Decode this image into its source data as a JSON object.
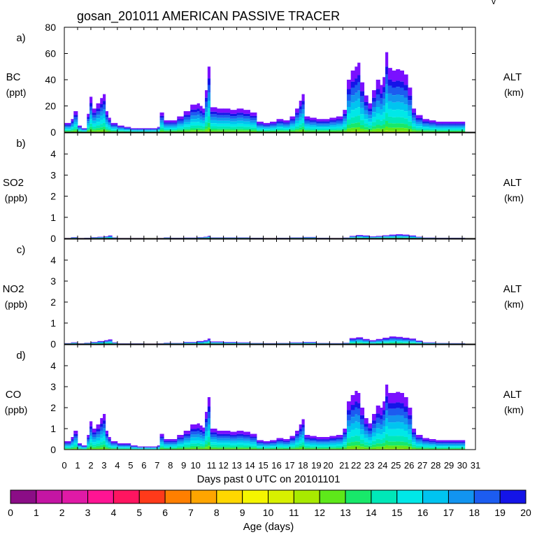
{
  "chart_data": {
    "type": "area",
    "title": "gosan_201011 AMERICAN PASSIVE TRACER",
    "corner_mark": "v",
    "xlabel": "Days past 0 UTC on 20101101",
    "x_ticks": [
      "0",
      "1",
      "2",
      "3",
      "4",
      "5",
      "6",
      "7",
      "8",
      "9",
      "10",
      "11",
      "12",
      "13",
      "14",
      "15",
      "16",
      "17",
      "18",
      "19",
      "20",
      "21",
      "22",
      "23",
      "24",
      "25",
      "26",
      "27",
      "28",
      "29",
      "30",
      "31"
    ],
    "xlim": [
      0,
      31
    ],
    "panels": [
      {
        "letter": "a)",
        "species": "BC",
        "unit": "(ppt)",
        "right_label": "ALT",
        "right_unit": "(km)",
        "ylim": [
          0,
          80
        ],
        "yticks": [
          "0",
          "20",
          "40",
          "60",
          "80"
        ],
        "ytick_values": [
          0,
          20,
          40,
          60,
          80
        ],
        "day": [
          0,
          0.5,
          0.7,
          1.0,
          1.3,
          1.7,
          1.9,
          2.1,
          2.4,
          2.7,
          2.9,
          3.1,
          3.3,
          3.5,
          4,
          4.5,
          5,
          5.5,
          6,
          6.5,
          7,
          7.2,
          7.5,
          8,
          8.5,
          9,
          9.5,
          10,
          10.2,
          10.4,
          10.6,
          10.8,
          11,
          11.5,
          12,
          12.5,
          13,
          13.5,
          14,
          14.5,
          15,
          15.5,
          16,
          16.5,
          17,
          17.4,
          17.7,
          17.9,
          18.1,
          18.5,
          19,
          19.5,
          20,
          20.5,
          21,
          21.3,
          21.6,
          21.9,
          22.1,
          22.3,
          22.6,
          22.9,
          23.2,
          23.5,
          23.8,
          24.0,
          24.2,
          24.4,
          24.7,
          25.0,
          25.3,
          25.6,
          25.9,
          26.2,
          26.5,
          27,
          27.5,
          28,
          28.5,
          29,
          29.5,
          30
        ],
        "total": [
          7,
          10,
          16,
          5,
          3,
          14,
          27,
          18,
          22,
          26,
          29,
          16,
          11,
          7,
          5,
          4,
          3,
          3,
          3,
          3,
          4,
          15,
          9,
          9,
          12,
          16,
          21,
          22,
          20,
          18,
          32,
          50,
          19,
          18,
          18,
          17,
          18,
          17,
          15,
          8,
          7,
          8,
          10,
          9,
          12,
          18,
          24,
          29,
          12,
          11,
          10,
          10,
          11,
          12,
          17,
          40,
          47,
          50,
          53,
          38,
          28,
          22,
          32,
          40,
          36,
          42,
          61,
          49,
          47,
          48,
          47,
          44,
          34,
          18,
          13,
          10,
          9,
          8,
          8,
          8,
          8,
          8
        ]
      },
      {
        "letter": "b)",
        "species": "SO2",
        "unit": "(ppb)",
        "right_label": "ALT",
        "right_unit": "(km)",
        "ylim": [
          0,
          5
        ],
        "yticks": [
          "0",
          "1",
          "2",
          "3",
          "4"
        ],
        "ytick_values": [
          0,
          1,
          2,
          3,
          4
        ],
        "day": [
          0,
          0.5,
          1,
          1.5,
          2,
          2.5,
          3,
          3.3,
          3.6,
          4,
          5,
          6,
          7,
          7.5,
          8,
          9,
          10,
          10.5,
          10.8,
          11,
          12,
          13,
          14,
          15,
          16,
          17,
          18,
          19,
          20,
          21,
          21.5,
          22,
          22.5,
          23,
          23.5,
          24,
          24.5,
          25,
          25.5,
          26,
          26.5,
          27,
          28,
          29,
          30
        ],
        "total": [
          0.02,
          0.06,
          0.02,
          0.03,
          0.06,
          0.08,
          0.1,
          0.14,
          0.05,
          0.02,
          0.02,
          0.01,
          0.02,
          0.05,
          0.03,
          0.04,
          0.06,
          0.08,
          0.12,
          0.05,
          0.05,
          0.05,
          0.03,
          0.02,
          0.03,
          0.05,
          0.07,
          0.03,
          0.02,
          0.04,
          0.12,
          0.16,
          0.14,
          0.1,
          0.12,
          0.15,
          0.18,
          0.2,
          0.18,
          0.14,
          0.08,
          0.04,
          0.03,
          0.03,
          0.03
        ]
      },
      {
        "letter": "c)",
        "species": "NO2",
        "unit": "(ppb)",
        "right_label": "ALT",
        "right_unit": "(km)",
        "ylim": [
          0,
          5
        ],
        "yticks": [
          "0",
          "1",
          "2",
          "3",
          "4"
        ],
        "ytick_values": [
          0,
          1,
          2,
          3,
          4
        ],
        "day": [
          0,
          0.5,
          1,
          1.5,
          2,
          2.5,
          3,
          3.3,
          3.6,
          4,
          5,
          6,
          7,
          7.5,
          8,
          9,
          10,
          10.5,
          10.8,
          11,
          12,
          13,
          14,
          15,
          16,
          17,
          18,
          19,
          20,
          21,
          21.5,
          22,
          22.5,
          23,
          23.5,
          24,
          24.5,
          25,
          25.5,
          26,
          26.5,
          27,
          28,
          29,
          30
        ],
        "total": [
          0.04,
          0.08,
          0.03,
          0.06,
          0.1,
          0.14,
          0.18,
          0.22,
          0.08,
          0.03,
          0.03,
          0.02,
          0.03,
          0.06,
          0.05,
          0.1,
          0.14,
          0.18,
          0.26,
          0.12,
          0.1,
          0.08,
          0.05,
          0.04,
          0.05,
          0.08,
          0.1,
          0.05,
          0.04,
          0.06,
          0.28,
          0.32,
          0.24,
          0.18,
          0.24,
          0.3,
          0.36,
          0.34,
          0.3,
          0.26,
          0.16,
          0.08,
          0.05,
          0.04,
          0.04
        ]
      },
      {
        "letter": "d)",
        "species": "CO",
        "unit": "(ppb)",
        "right_label": "ALT",
        "right_unit": "(km)",
        "ylim": [
          0,
          5
        ],
        "yticks": [
          "0",
          "1",
          "2",
          "3",
          "4"
        ],
        "ytick_values": [
          0,
          1,
          2,
          3,
          4
        ],
        "day": [
          0,
          0.5,
          0.7,
          1.0,
          1.3,
          1.7,
          1.9,
          2.1,
          2.4,
          2.7,
          2.9,
          3.1,
          3.3,
          3.5,
          4,
          4.5,
          5,
          5.5,
          6,
          6.5,
          7,
          7.2,
          7.5,
          8,
          8.5,
          9,
          9.5,
          10,
          10.2,
          10.4,
          10.6,
          10.8,
          11,
          11.5,
          12,
          12.5,
          13,
          13.5,
          14,
          14.5,
          15,
          15.5,
          16,
          16.5,
          17,
          17.4,
          17.7,
          17.9,
          18.1,
          18.5,
          19,
          19.5,
          20,
          20.5,
          21,
          21.3,
          21.6,
          21.9,
          22.1,
          22.3,
          22.6,
          22.9,
          23.2,
          23.5,
          23.8,
          24.0,
          24.2,
          24.4,
          24.7,
          25.0,
          25.3,
          25.6,
          25.9,
          26.2,
          26.5,
          27,
          27.5,
          28,
          28.5,
          29,
          29.5,
          30
        ],
        "total": [
          0.4,
          0.6,
          0.9,
          0.3,
          0.2,
          0.7,
          1.35,
          1.0,
          1.2,
          1.5,
          1.7,
          0.9,
          0.6,
          0.4,
          0.3,
          0.3,
          0.2,
          0.15,
          0.15,
          0.15,
          0.2,
          0.75,
          0.5,
          0.5,
          0.7,
          0.9,
          1.2,
          1.25,
          1.15,
          1.05,
          1.8,
          2.5,
          1.0,
          0.9,
          0.9,
          0.85,
          0.9,
          0.85,
          0.75,
          0.45,
          0.4,
          0.45,
          0.55,
          0.5,
          0.65,
          0.9,
          1.2,
          1.45,
          0.7,
          0.65,
          0.6,
          0.6,
          0.65,
          0.7,
          1.0,
          2.3,
          2.6,
          2.8,
          2.7,
          2.0,
          1.5,
          1.25,
          1.7,
          2.1,
          2.0,
          2.3,
          3.1,
          2.7,
          2.7,
          2.75,
          2.7,
          2.5,
          2.0,
          1.0,
          0.7,
          0.55,
          0.5,
          0.45,
          0.45,
          0.45,
          0.45,
          0.45
        ]
      }
    ],
    "colorbar": {
      "label": "Age (days)",
      "ticks": [
        "0",
        "1",
        "2",
        "3",
        "4",
        "5",
        "6",
        "7",
        "8",
        "9",
        "10",
        "11",
        "12",
        "13",
        "14",
        "15",
        "16",
        "17",
        "18",
        "19",
        "20"
      ],
      "colors": [
        "#8b0d86",
        "#c415a3",
        "#e01aa6",
        "#ff1493",
        "#ff1560",
        "#ff3a1a",
        "#ff7f00",
        "#ffa500",
        "#ffd700",
        "#f5f500",
        "#d8f000",
        "#a8ea00",
        "#5ee81a",
        "#18e86a",
        "#00e8b8",
        "#00e8e8",
        "#00c4f0",
        "#1294f0",
        "#1c5cf0",
        "#1414e8"
      ],
      "band_colors": [
        "#7a10ff",
        "#1414e8",
        "#1c5cf0",
        "#1294f0",
        "#00c4f0",
        "#00e8e8",
        "#00e8b8",
        "#18e86a",
        "#5ee81a",
        "#a8ea00",
        "#f5f500"
      ],
      "band_fractions": [
        0.18,
        0.1,
        0.12,
        0.12,
        0.12,
        0.12,
        0.1,
        0.07,
        0.05,
        0.04,
        0.03
      ]
    }
  }
}
